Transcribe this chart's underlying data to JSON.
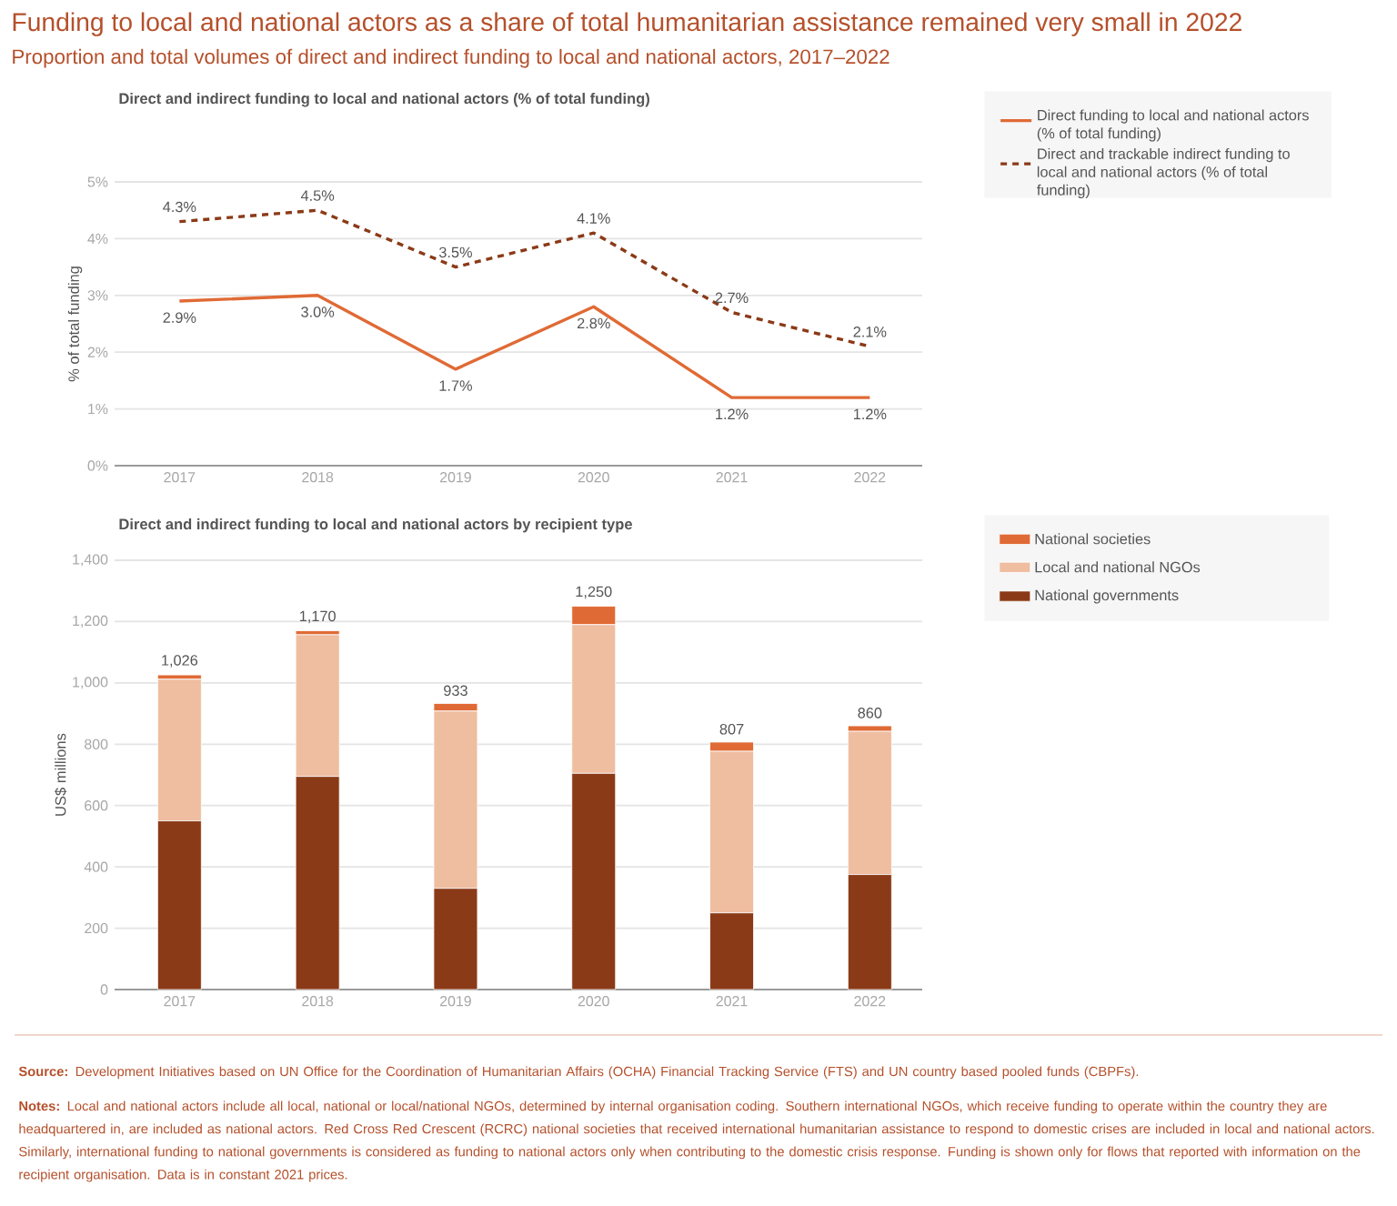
{
  "chart_data": [
    {
      "type": "line",
      "title": "Funding to local and national actors as a share of total humanitarian assistance remained very small in 2022",
      "subtitle": "Proportion and total volumes of direct and indirect funding to local and national actors, 2017–2022",
      "annotations": [
        "Direct and indirect funding to local and national actors (% of total funding)"
      ],
      "ylabel": "% of total funding",
      "categories": [
        "2017",
        "2018",
        "2019",
        "2020",
        "2021",
        "2022"
      ],
      "series": [
        {
          "name": "Direct funding to local and national actors (% of total funding)",
          "color": "#e06a35",
          "line_style": "solid",
          "values": [
            2.9,
            3.0,
            1.7,
            2.8,
            1.2,
            1.2
          ],
          "value_labels": [
            "2.9%",
            "3.0%",
            "1.7%",
            "2.8%",
            "1.2%",
            "1.2%"
          ]
        },
        {
          "name": "Direct and trackable indirect funding to local and national actors (% of total funding)",
          "color": "#8b3a17",
          "line_style": "dashed",
          "values": [
            4.3,
            4.5,
            3.5,
            4.1,
            2.7,
            2.1
          ],
          "value_labels": [
            "4.3%",
            "4.5%",
            "3.5%",
            "4.1%",
            "2.7%",
            "2.1%"
          ]
        }
      ],
      "ylim": [
        0,
        5
      ],
      "yticks": [
        {
          "value": 0,
          "label": "0%"
        },
        {
          "value": 1,
          "label": "1%"
        },
        {
          "value": 2,
          "label": "2%"
        },
        {
          "value": 3,
          "label": "3%"
        },
        {
          "value": 4,
          "label": "4%"
        },
        {
          "value": 5,
          "label": "5%"
        }
      ],
      "grid": "y",
      "legend": "right",
      "marker": "none"
    },
    {
      "type": "bar",
      "title": "Direct and indirect funding to local and national actors by recipient type",
      "ylabel": "US$ millions",
      "categories": [
        "2017",
        "2018",
        "2019",
        "2020",
        "2021",
        "2022"
      ],
      "stacked": true,
      "series": [
        {
          "name": "National governments",
          "color": "#8b3a17",
          "values": [
            550,
            695,
            330,
            705,
            250,
            375
          ]
        },
        {
          "name": "Local and national NGOs",
          "color": "#efbda0",
          "values": [
            462,
            462,
            578,
            485,
            527,
            467
          ]
        },
        {
          "name": "National societies",
          "color": "#e06a35",
          "values": [
            14,
            13,
            25,
            60,
            30,
            18
          ]
        }
      ],
      "totals": [
        "1,026",
        "1,170",
        "933",
        "1,250",
        "807",
        "860"
      ],
      "ylim": [
        0,
        1400
      ],
      "yticks": [
        0,
        200,
        400,
        600,
        800,
        {
          "value": 1000,
          "label": "1,000"
        },
        {
          "value": 1200,
          "label": "1,200"
        },
        {
          "value": 1400,
          "label": "1,400"
        }
      ],
      "grid": "y",
      "legend": "right",
      "annotations": [
        "**Source:** Development Initiatives based on UN Office for the Coordination of Humanitarian Affairs (OCHA) Financial Tracking Service (FTS) and UN country based pooled funds (CBPFs).",
        "**Notes:** Local and national actors include all local, national or local/national NGOs, determined by internal organisation coding. Southern international NGOs, which receive funding to operate within the country they are headquartered in, are included as national actors. Red Cross Red Crescent (RCRC) national societies that received international humanitarian assistance to respond to domestic crises are included in local and national actors. Similarly, international funding to national governments is considered as funding to national actors only when contributing to the domestic crisis response. Funding is shown only for flows that reported with information on the recipient organisation. Data is in constant 2021 prices."
      ]
    }
  ]
}
